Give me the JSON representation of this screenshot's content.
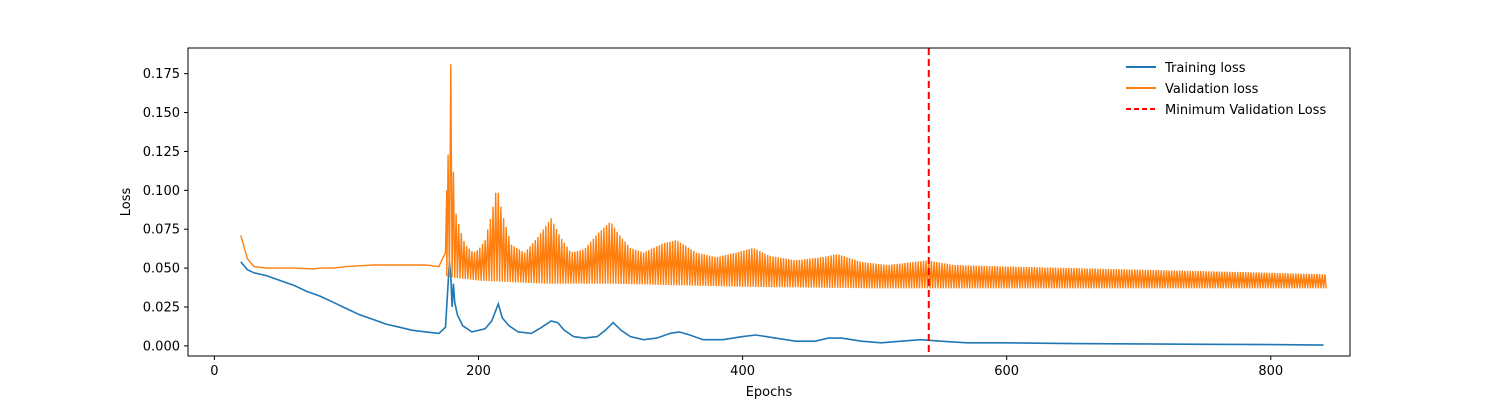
{
  "chart_data": {
    "type": "line",
    "title": "",
    "xlabel": "Epochs",
    "ylabel": "Loss",
    "xlim": [
      -20,
      860
    ],
    "ylim": [
      -0.0065,
      0.1915
    ],
    "xticks": [
      0,
      200,
      400,
      600,
      800
    ],
    "xtick_labels": [
      "0",
      "200",
      "400",
      "600",
      "800"
    ],
    "yticks": [
      0.0,
      0.025,
      0.05,
      0.075,
      0.1,
      0.125,
      0.15,
      0.175
    ],
    "ytick_labels": [
      "0.000",
      "0.025",
      "0.050",
      "0.075",
      "0.100",
      "0.125",
      "0.150",
      "0.175"
    ],
    "grid": false,
    "legend_position": "top-right",
    "series": [
      {
        "name": "Training loss",
        "color": "#1f77b4",
        "style": "solid",
        "points": [
          [
            20,
            0.054
          ],
          [
            25,
            0.049
          ],
          [
            30,
            0.047
          ],
          [
            40,
            0.045
          ],
          [
            50,
            0.042
          ],
          [
            60,
            0.039
          ],
          [
            70,
            0.035
          ],
          [
            80,
            0.032
          ],
          [
            90,
            0.028
          ],
          [
            100,
            0.024
          ],
          [
            110,
            0.02
          ],
          [
            120,
            0.017
          ],
          [
            130,
            0.014
          ],
          [
            140,
            0.012
          ],
          [
            150,
            0.01
          ],
          [
            160,
            0.009
          ],
          [
            170,
            0.008
          ],
          [
            175,
            0.012
          ],
          [
            177,
            0.04
          ],
          [
            178,
            0.054
          ],
          [
            179,
            0.045
          ],
          [
            180,
            0.025
          ],
          [
            181,
            0.04
          ],
          [
            182,
            0.028
          ],
          [
            184,
            0.02
          ],
          [
            188,
            0.013
          ],
          [
            195,
            0.009
          ],
          [
            205,
            0.011
          ],
          [
            210,
            0.016
          ],
          [
            215,
            0.027
          ],
          [
            218,
            0.018
          ],
          [
            223,
            0.013
          ],
          [
            230,
            0.009
          ],
          [
            240,
            0.008
          ],
          [
            248,
            0.012
          ],
          [
            255,
            0.016
          ],
          [
            260,
            0.015
          ],
          [
            265,
            0.01
          ],
          [
            272,
            0.006
          ],
          [
            280,
            0.005
          ],
          [
            290,
            0.006
          ],
          [
            296,
            0.01
          ],
          [
            302,
            0.015
          ],
          [
            308,
            0.01
          ],
          [
            315,
            0.006
          ],
          [
            325,
            0.004
          ],
          [
            335,
            0.005
          ],
          [
            345,
            0.008
          ],
          [
            352,
            0.009
          ],
          [
            360,
            0.007
          ],
          [
            370,
            0.004
          ],
          [
            385,
            0.004
          ],
          [
            400,
            0.006
          ],
          [
            410,
            0.007
          ],
          [
            425,
            0.005
          ],
          [
            440,
            0.003
          ],
          [
            455,
            0.003
          ],
          [
            465,
            0.005
          ],
          [
            475,
            0.005
          ],
          [
            490,
            0.003
          ],
          [
            505,
            0.002
          ],
          [
            520,
            0.003
          ],
          [
            535,
            0.004
          ],
          [
            550,
            0.003
          ],
          [
            570,
            0.002
          ],
          [
            600,
            0.002
          ],
          [
            650,
            0.0015
          ],
          [
            700,
            0.0013
          ],
          [
            750,
            0.001
          ],
          [
            800,
            0.0008
          ],
          [
            840,
            0.0005
          ]
        ]
      },
      {
        "name": "Validation loss",
        "color": "#ff7f0e",
        "style": "solid",
        "points": [
          [
            20,
            0.071
          ],
          [
            25,
            0.056
          ],
          [
            30,
            0.051
          ],
          [
            40,
            0.05
          ],
          [
            60,
            0.05
          ],
          [
            75,
            0.0495
          ],
          [
            80,
            0.05
          ],
          [
            90,
            0.05
          ],
          [
            100,
            0.051
          ],
          [
            120,
            0.052
          ],
          [
            140,
            0.052
          ],
          [
            160,
            0.052
          ],
          [
            170,
            0.051
          ],
          [
            175,
            0.06
          ],
          [
            176,
            0.1
          ],
          [
            177,
            0.123
          ],
          [
            178,
            0.11
          ],
          [
            179,
            0.181
          ],
          [
            180,
            0.12
          ],
          [
            181,
            0.112
          ],
          [
            183,
            0.085
          ],
          [
            186,
            0.075
          ],
          [
            190,
            0.065
          ],
          [
            196,
            0.06
          ],
          [
            200,
            0.062
          ],
          [
            205,
            0.068
          ],
          [
            210,
            0.085
          ],
          [
            214,
            0.103
          ],
          [
            218,
            0.085
          ],
          [
            225,
            0.065
          ],
          [
            235,
            0.06
          ],
          [
            245,
            0.07
          ],
          [
            255,
            0.082
          ],
          [
            262,
            0.07
          ],
          [
            270,
            0.06
          ],
          [
            280,
            0.062
          ],
          [
            290,
            0.072
          ],
          [
            300,
            0.08
          ],
          [
            306,
            0.072
          ],
          [
            315,
            0.063
          ],
          [
            325,
            0.06
          ],
          [
            340,
            0.066
          ],
          [
            350,
            0.068
          ],
          [
            365,
            0.06
          ],
          [
            380,
            0.057
          ],
          [
            395,
            0.06
          ],
          [
            408,
            0.063
          ],
          [
            420,
            0.058
          ],
          [
            440,
            0.055
          ],
          [
            460,
            0.057
          ],
          [
            472,
            0.059
          ],
          [
            490,
            0.054
          ],
          [
            510,
            0.052
          ],
          [
            530,
            0.054
          ],
          [
            540,
            0.055
          ],
          [
            560,
            0.052
          ],
          [
            600,
            0.051
          ],
          [
            650,
            0.05
          ],
          [
            700,
            0.049
          ],
          [
            750,
            0.048
          ],
          [
            800,
            0.047
          ],
          [
            840,
            0.046
          ]
        ],
        "lower_envelope": [
          [
            175,
            0.045
          ],
          [
            180,
            0.044
          ],
          [
            200,
            0.042
          ],
          [
            250,
            0.04
          ],
          [
            300,
            0.04
          ],
          [
            350,
            0.039
          ],
          [
            400,
            0.038
          ],
          [
            450,
            0.0375
          ],
          [
            500,
            0.037
          ],
          [
            550,
            0.037
          ],
          [
            600,
            0.037
          ],
          [
            700,
            0.037
          ],
          [
            800,
            0.037
          ],
          [
            840,
            0.037
          ]
        ]
      }
    ],
    "vline": {
      "name": "Minimum Validation Loss",
      "x": 541,
      "color": "#ff0000",
      "style": "dashed"
    }
  }
}
